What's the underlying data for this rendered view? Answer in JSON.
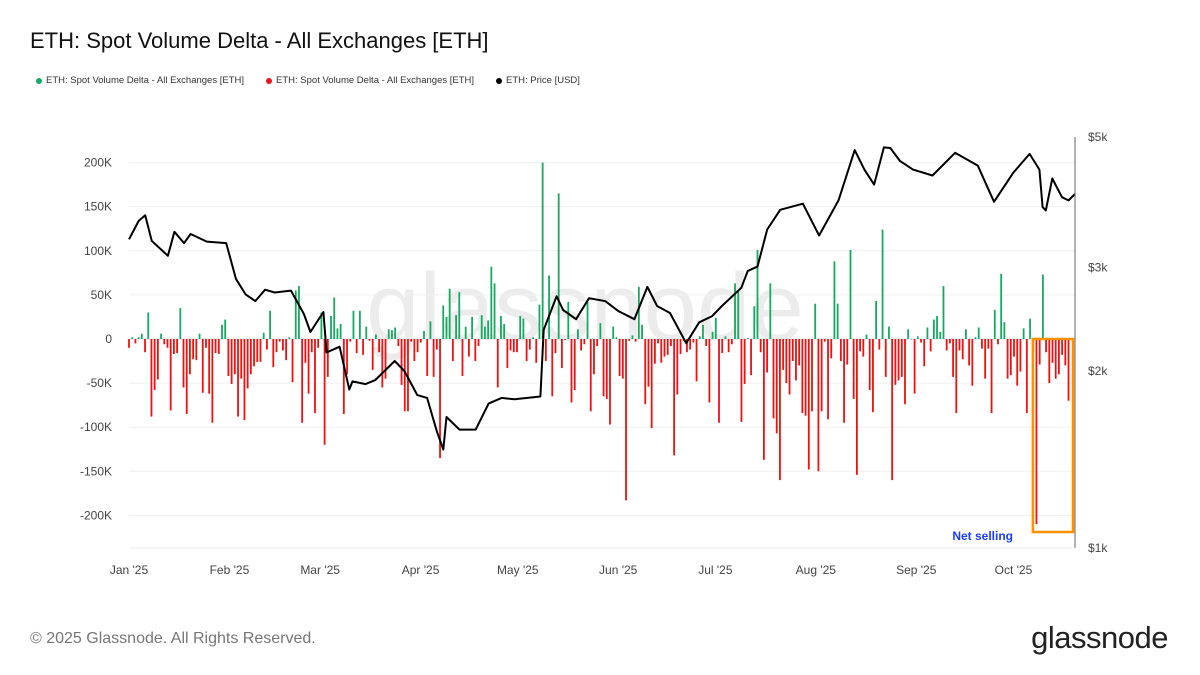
{
  "title": "ETH: Spot Volume Delta - All Exchanges [ETH]",
  "footer": "© 2025 Glassnode. All Rights Reserved.",
  "logo": "glassnode",
  "watermark": "glassnode",
  "annotation": {
    "label": "Net selling",
    "color": "#1a3cff",
    "box_color": "#ff9000",
    "range": [
      "2025-10-07",
      "2025-10-20"
    ]
  },
  "chart_data": {
    "type": "bar+line",
    "legend": [
      {
        "name": "ETH: Spot Volume Delta - All Exchanges [ETH]",
        "color": "#17a862"
      },
      {
        "name": "ETH: Spot Volume Delta - All Exchanges [ETH]",
        "color": "#ee1111"
      },
      {
        "name": "ETH: Price [USD]",
        "color": "#000000"
      }
    ],
    "legend_placement": "top-left",
    "grid": true,
    "xlim": [
      "2025-01-01",
      "2025-10-20"
    ],
    "x_ticks": [
      "Jan '25",
      "Feb '25",
      "Mar '25",
      "Apr '25",
      "May '25",
      "Jun '25",
      "Jul '25",
      "Aug '25",
      "Sep '25",
      "Oct '25"
    ],
    "x_tick_dates": [
      "2025-01-01",
      "2025-02-01",
      "2025-03-01",
      "2025-04-01",
      "2025-05-01",
      "2025-06-01",
      "2025-07-01",
      "2025-08-01",
      "2025-09-01",
      "2025-10-01"
    ],
    "y_left": {
      "unit": "K ETH",
      "lim": [
        -237,
        229
      ],
      "ticks": [
        -200,
        -150,
        -100,
        -50,
        0,
        50,
        100,
        150,
        200
      ],
      "tick_labels": [
        "-200K",
        "-150K",
        "-100K",
        "-50K",
        "0",
        "50K",
        "100K",
        "150K",
        "200K"
      ]
    },
    "y_right": {
      "scale": "log",
      "lim": [
        1000,
        5000
      ],
      "ticks": [
        1000,
        2000,
        3000,
        5000
      ],
      "tick_labels": [
        "$1k",
        "$2k",
        "$3k",
        "$5k"
      ]
    },
    "volume_delta_k": [
      -10,
      2,
      -5,
      2,
      6,
      -15,
      30,
      -88,
      -58,
      -46,
      6,
      -6,
      -10,
      -81,
      -17,
      -16,
      35,
      -55,
      -85,
      -40,
      -23,
      -24,
      6,
      -61,
      -10,
      -62,
      -95,
      -16,
      -17,
      16,
      22,
      -42,
      -51,
      -40,
      -88,
      -45,
      -92,
      -56,
      -40,
      -31,
      -26,
      -26,
      7,
      -12,
      32,
      -32,
      -15,
      -3,
      -13,
      -24,
      2,
      -49,
      55,
      60,
      -95,
      -27,
      -62,
      -15,
      -84,
      -10,
      30,
      -120,
      -43,
      26,
      47,
      12,
      17,
      -85,
      -40,
      -3,
      32,
      -16,
      32,
      -18,
      14,
      -2,
      -35,
      5,
      -15,
      -55,
      -45,
      11,
      10,
      13,
      -8,
      -52,
      -82,
      -82,
      -3,
      -25,
      -15,
      -4,
      9,
      -42,
      20,
      -43,
      -12,
      -135,
      38,
      25,
      57,
      -25,
      27,
      53,
      -42,
      14,
      -20,
      25,
      -25,
      -8,
      27,
      14,
      21,
      82,
      63,
      -55,
      26,
      17,
      -33,
      -13,
      -15,
      -15,
      26,
      23,
      -25,
      -12,
      2,
      -27,
      39,
      200,
      -25,
      72,
      -65,
      -16,
      165,
      -33,
      -1,
      42,
      -72,
      -58,
      11,
      -13,
      -6,
      42,
      -82,
      -40,
      -8,
      18,
      -65,
      -68,
      -97,
      14,
      2,
      -42,
      -45,
      -183,
      -2,
      4,
      -3,
      59,
      16,
      -74,
      -54,
      -101,
      -28,
      -5,
      -27,
      -20,
      -18,
      -8,
      -132,
      -63,
      -17,
      -2,
      -15,
      -12,
      -4,
      -48,
      3,
      16,
      -8,
      -72,
      8,
      24,
      -95,
      -16,
      3,
      -15,
      -6,
      63,
      55,
      -94,
      -51,
      1,
      -41,
      37,
      101,
      -15,
      -137,
      -38,
      63,
      -90,
      -107,
      -160,
      -35,
      -50,
      -63,
      -25,
      -47,
      -30,
      -84,
      -87,
      -148,
      -82,
      40,
      -150,
      -82,
      -3,
      -91,
      -22,
      88,
      40,
      -25,
      -95,
      -29,
      101,
      -68,
      -154,
      -14,
      -20,
      5,
      -58,
      -83,
      43,
      -12,
      124,
      -43,
      14,
      -160,
      -52,
      -47,
      -43,
      -74,
      11,
      0,
      -62,
      3,
      -4,
      -31,
      13,
      -14,
      22,
      26,
      8,
      60,
      -13,
      -5,
      -43,
      -84,
      -13,
      -23,
      11,
      -30,
      -53,
      2,
      13,
      -11,
      -45,
      -11,
      -84,
      33,
      -6,
      74,
      19,
      -45,
      -41,
      -20,
      -53,
      -37,
      12,
      -84,
      23,
      -14,
      -210,
      -29,
      73,
      -15,
      -50,
      -27,
      -45,
      -40,
      -18,
      -30,
      -70
    ],
    "price_usd": [
      [
        "2025-01-01",
        3350
      ],
      [
        "2025-01-04",
        3600
      ],
      [
        "2025-01-06",
        3680
      ],
      [
        "2025-01-08",
        3330
      ],
      [
        "2025-01-13",
        3140
      ],
      [
        "2025-01-15",
        3450
      ],
      [
        "2025-01-18",
        3300
      ],
      [
        "2025-01-20",
        3420
      ],
      [
        "2025-01-25",
        3320
      ],
      [
        "2025-01-31",
        3300
      ],
      [
        "2025-02-03",
        2870
      ],
      [
        "2025-02-06",
        2700
      ],
      [
        "2025-02-09",
        2630
      ],
      [
        "2025-02-12",
        2750
      ],
      [
        "2025-02-15",
        2720
      ],
      [
        "2025-02-20",
        2740
      ],
      [
        "2025-02-24",
        2500
      ],
      [
        "2025-02-26",
        2330
      ],
      [
        "2025-03-02",
        2520
      ],
      [
        "2025-03-03",
        2150
      ],
      [
        "2025-03-07",
        2200
      ],
      [
        "2025-03-10",
        1860
      ],
      [
        "2025-03-11",
        1920
      ],
      [
        "2025-03-15",
        1900
      ],
      [
        "2025-03-18",
        1930
      ],
      [
        "2025-03-24",
        2080
      ],
      [
        "2025-03-27",
        2000
      ],
      [
        "2025-03-31",
        1820
      ],
      [
        "2025-04-03",
        1800
      ],
      [
        "2025-04-06",
        1580
      ],
      [
        "2025-04-08",
        1470
      ],
      [
        "2025-04-09",
        1670
      ],
      [
        "2025-04-13",
        1590
      ],
      [
        "2025-04-18",
        1590
      ],
      [
        "2025-04-22",
        1760
      ],
      [
        "2025-04-26",
        1800
      ],
      [
        "2025-04-30",
        1790
      ],
      [
        "2025-05-08",
        1810
      ],
      [
        "2025-05-09",
        2350
      ],
      [
        "2025-05-13",
        2680
      ],
      [
        "2025-05-15",
        2540
      ],
      [
        "2025-05-19",
        2450
      ],
      [
        "2025-05-23",
        2660
      ],
      [
        "2025-05-28",
        2630
      ],
      [
        "2025-06-01",
        2530
      ],
      [
        "2025-06-06",
        2450
      ],
      [
        "2025-06-10",
        2780
      ],
      [
        "2025-06-13",
        2580
      ],
      [
        "2025-06-17",
        2510
      ],
      [
        "2025-06-22",
        2230
      ],
      [
        "2025-06-26",
        2420
      ],
      [
        "2025-06-30",
        2480
      ],
      [
        "2025-07-03",
        2580
      ],
      [
        "2025-07-09",
        2770
      ],
      [
        "2025-07-11",
        2960
      ],
      [
        "2025-07-14",
        3010
      ],
      [
        "2025-07-17",
        3480
      ],
      [
        "2025-07-21",
        3760
      ],
      [
        "2025-07-28",
        3850
      ],
      [
        "2025-08-02",
        3400
      ],
      [
        "2025-08-08",
        3900
      ],
      [
        "2025-08-13",
        4750
      ],
      [
        "2025-08-16",
        4400
      ],
      [
        "2025-08-19",
        4150
      ],
      [
        "2025-08-22",
        4800
      ],
      [
        "2025-08-24",
        4790
      ],
      [
        "2025-08-27",
        4550
      ],
      [
        "2025-08-31",
        4400
      ],
      [
        "2025-09-06",
        4300
      ],
      [
        "2025-09-13",
        4700
      ],
      [
        "2025-09-20",
        4470
      ],
      [
        "2025-09-25",
        3880
      ],
      [
        "2025-10-01",
        4350
      ],
      [
        "2025-10-06",
        4680
      ],
      [
        "2025-10-09",
        4400
      ],
      [
        "2025-10-10",
        3800
      ],
      [
        "2025-10-11",
        3750
      ],
      [
        "2025-10-13",
        4250
      ],
      [
        "2025-10-16",
        3950
      ],
      [
        "2025-10-18",
        3900
      ],
      [
        "2025-10-20",
        4000
      ]
    ]
  }
}
